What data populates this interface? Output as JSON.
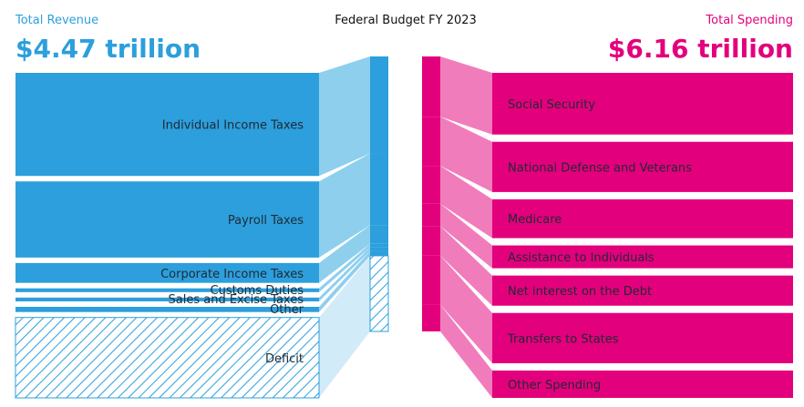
{
  "chart_data": {
    "type": "sankey",
    "title": "Federal Budget FY 2023",
    "revenue": {
      "label": "Total Revenue",
      "total_text": "$4.47 trillion",
      "color": "#2c9fdc",
      "flow_color": "#8ecfee",
      "deficit_color": "#2c9fdc",
      "items": [
        {
          "name": "Individual Income Taxes",
          "value": 2.18
        },
        {
          "name": "Payroll Taxes",
          "value": 1.61
        },
        {
          "name": "Corporate Income Taxes",
          "value": 0.42
        },
        {
          "name": "Customs Duties",
          "value": 0.08
        },
        {
          "name": "Sales and Excise Taxes",
          "value": 0.08
        },
        {
          "name": "Other",
          "value": 0.11
        },
        {
          "name": "Deficit",
          "value": 1.7,
          "hatched": true
        }
      ]
    },
    "spending": {
      "label": "Total Spending",
      "total_text": "$6.16 trillion",
      "color": "#e3007c",
      "flow_color": "#f17cbc",
      "items": [
        {
          "name": "Social Security",
          "value": 1.35
        },
        {
          "name": "National Defense and Veterans",
          "value": 1.1
        },
        {
          "name": "Medicare",
          "value": 0.85
        },
        {
          "name": "Assistance to Individuals",
          "value": 0.5
        },
        {
          "name": "Net interest on the Debt",
          "value": 0.66
        },
        {
          "name": "Transfers to States",
          "value": 1.1
        },
        {
          "name": "Other Spending",
          "value": 0.6
        }
      ]
    }
  }
}
